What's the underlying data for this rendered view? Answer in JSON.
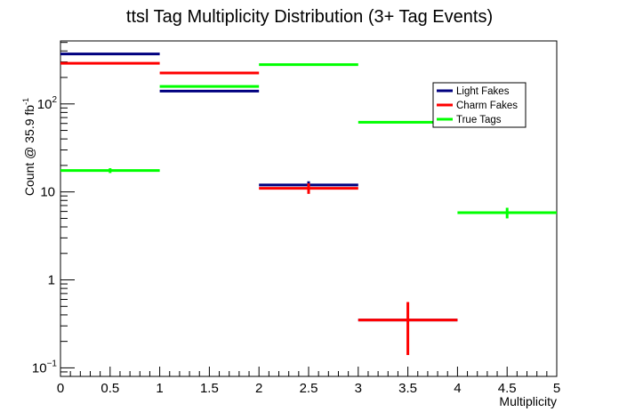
{
  "chart_data": {
    "type": "histogram",
    "title": "ttsl Tag Multiplicity Distribution (3+ Tag Events)",
    "xlabel": "Multiplicity",
    "ylabel": "Count @ 35.9 fb",
    "ylabel_superscript": "-1",
    "xlim": [
      0,
      5
    ],
    "ylim": [
      0.08,
      520
    ],
    "yscale": "log",
    "x_ticks": [
      "0",
      "0.5",
      "1",
      "1.5",
      "2",
      "2.5",
      "3",
      "3.5",
      "4",
      "4.5",
      "5"
    ],
    "y_ticks": [
      {
        "value": 0.1,
        "base": "10",
        "exp": "−1"
      },
      {
        "value": 1,
        "base": "1",
        "exp": ""
      },
      {
        "value": 10,
        "base": "10",
        "exp": ""
      },
      {
        "value": 100,
        "base": "10",
        "exp": "2"
      }
    ],
    "bin_edges": [
      0,
      1,
      2,
      3,
      4,
      5
    ],
    "legend_position": "top-right",
    "series": [
      {
        "name": "Light Fakes",
        "color": "#00007f",
        "values": [
          370,
          140,
          12,
          0.35,
          null
        ],
        "errors": [
          0,
          0,
          1.2,
          0,
          0
        ]
      },
      {
        "name": "Charm Fakes",
        "color": "#ff0000",
        "values": [
          290,
          225,
          11,
          0.35,
          null
        ],
        "errors": [
          0,
          0,
          1.5,
          0.21,
          0
        ]
      },
      {
        "name": "True Tags",
        "color": "#00ff00",
        "values": [
          17.5,
          158,
          280,
          62,
          5.8
        ],
        "errors": [
          1.1,
          0,
          0,
          1.5,
          0.8
        ]
      }
    ]
  }
}
